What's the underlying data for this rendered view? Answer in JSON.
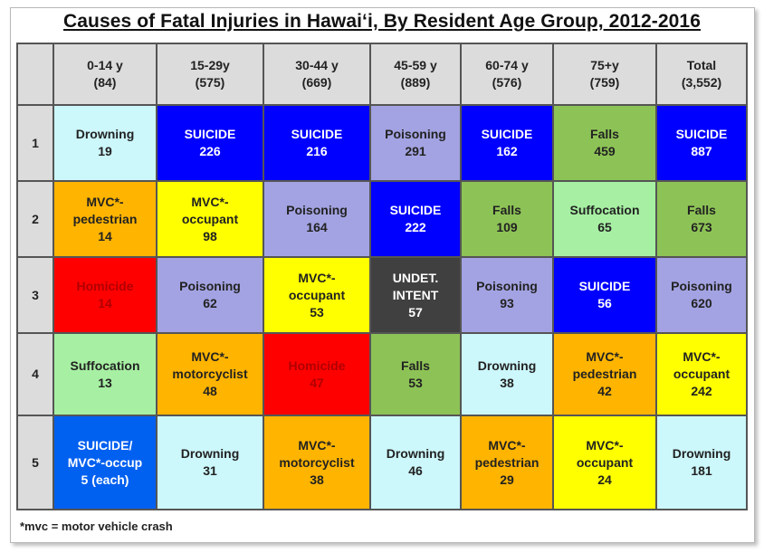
{
  "title": "Causes of Fatal Injuries in Hawaiʻi, By Resident Age Group, 2012-2016",
  "footnote": "*mvc = motor vehicle crash",
  "colors": {
    "header_bg": "#dcdcdc",
    "light_cyan": "#ccf7fb",
    "blue": "#0000ff",
    "lavender": "#a3a3e3",
    "green": "#8dc356",
    "orange": "#ffb400",
    "yellow": "#ffff00",
    "light_green": "#a7f0a3",
    "red": "#ff0000",
    "dark_gray": "#404040",
    "medium_blue": "#0060f0"
  },
  "header": [
    {
      "label": "0-14 y\n(84)"
    },
    {
      "label": "15-29y\n(575)"
    },
    {
      "label": "30-44 y\n(669)"
    },
    {
      "label": "45-59 y\n(889)"
    },
    {
      "label": "60-74 y\n(576)"
    },
    {
      "label": "75+y\n(759)"
    },
    {
      "label": "Total\n(3,552)"
    }
  ],
  "rows": [
    {
      "rank": "1",
      "cells": [
        {
          "text": "Drowning\n19",
          "color": "light_cyan"
        },
        {
          "text": "SUICIDE\n226",
          "color": "blue"
        },
        {
          "text": "SUICIDE\n216",
          "color": "blue"
        },
        {
          "text": "Poisoning\n291",
          "color": "lavender"
        },
        {
          "text": "SUICIDE\n162",
          "color": "blue"
        },
        {
          "text": "Falls\n459",
          "color": "green"
        },
        {
          "text": "SUICIDE\n887",
          "color": "blue"
        }
      ]
    },
    {
      "rank": "2",
      "cells": [
        {
          "text": "MVC*-\npedestrian\n14",
          "color": "orange"
        },
        {
          "text": "MVC*-\noccupant\n98",
          "color": "yellow"
        },
        {
          "text": "Poisoning\n164",
          "color": "lavender"
        },
        {
          "text": "SUICIDE\n222",
          "color": "blue"
        },
        {
          "text": "Falls\n109",
          "color": "green"
        },
        {
          "text": "Suffocation\n65",
          "color": "light_green"
        },
        {
          "text": "Falls\n673",
          "color": "green"
        }
      ]
    },
    {
      "rank": "3",
      "cells": [
        {
          "text": "Homicide\n14",
          "color": "red"
        },
        {
          "text": "Poisoning\n62",
          "color": "lavender"
        },
        {
          "text": "MVC*-\noccupant\n53",
          "color": "yellow"
        },
        {
          "text": "UNDET.\nINTENT\n57",
          "color": "dark_gray"
        },
        {
          "text": "Poisoning\n93",
          "color": "lavender"
        },
        {
          "text": "SUICIDE\n56",
          "color": "blue"
        },
        {
          "text": "Poisoning\n620",
          "color": "lavender"
        }
      ]
    },
    {
      "rank": "4",
      "cells": [
        {
          "text": "Suffocation\n13",
          "color": "light_green"
        },
        {
          "text": "MVC*-\nmotorcyclist\n48",
          "color": "orange"
        },
        {
          "text": "Homicide\n47",
          "color": "red"
        },
        {
          "text": "Falls\n53",
          "color": "green"
        },
        {
          "text": "Drowning\n38",
          "color": "light_cyan"
        },
        {
          "text": "MVC*-\npedestrian\n42",
          "color": "orange"
        },
        {
          "text": "MVC*-\noccupant\n242",
          "color": "yellow"
        }
      ]
    },
    {
      "rank": "5",
      "cells": [
        {
          "text": "SUICIDE/\nMVC*-occup\n5 (each)",
          "color": "medium_blue"
        },
        {
          "text": "Drowning\n31",
          "color": "light_cyan"
        },
        {
          "text": "MVC*-\nmotorcyclist\n38",
          "color": "orange"
        },
        {
          "text": "Drowning\n46",
          "color": "light_cyan"
        },
        {
          "text": "MVC*-\npedestrian\n29",
          "color": "orange"
        },
        {
          "text": "MVC*-\noccupant\n24",
          "color": "yellow"
        },
        {
          "text": "Drowning\n181",
          "color": "light_cyan"
        }
      ]
    }
  ]
}
